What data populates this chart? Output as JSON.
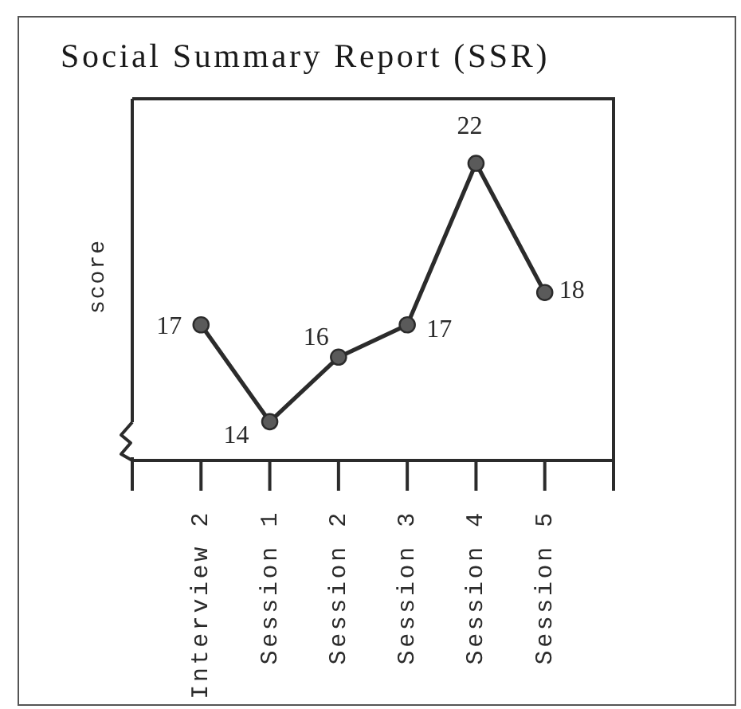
{
  "chart_data": {
    "type": "line",
    "title": "Social Summary Report (SSR)",
    "ylabel": "score",
    "categories": [
      "Interview 2",
      "Session 1",
      "Session 2",
      "Session 3",
      "Session 4",
      "Session 5"
    ],
    "series": [
      {
        "color": "#2b2b2b",
        "values": [
          17,
          14,
          16,
          17,
          22,
          18
        ]
      }
    ],
    "data_labels": true,
    "marker": "circle",
    "line_style": "solid",
    "tick_labels": "x"
  }
}
